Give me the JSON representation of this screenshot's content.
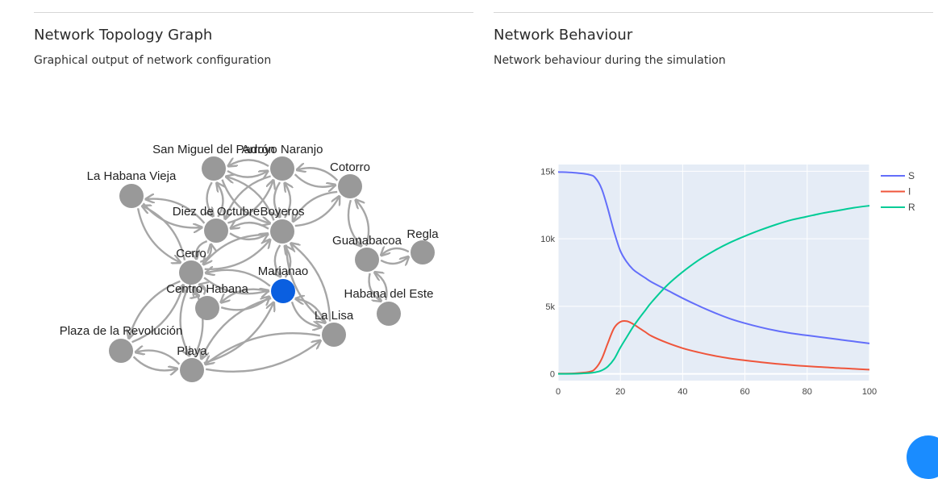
{
  "topology": {
    "title": "Network Topology Graph",
    "subtitle": "Graphical output of network configuration",
    "node_color": "#999999",
    "highlight_color": "#0a5fe0",
    "edge_color": "#a6a6a6",
    "nodes": [
      {
        "label": "San Miguel del Padrón",
        "highlight": false
      },
      {
        "label": "Arroyo Naranjo",
        "highlight": false
      },
      {
        "label": "Cotorro",
        "highlight": false
      },
      {
        "label": "La Habana Vieja",
        "highlight": false
      },
      {
        "label": "Diez de Octubre",
        "highlight": false
      },
      {
        "label": "Boyeros",
        "highlight": false
      },
      {
        "label": "Guanabacoa",
        "highlight": false
      },
      {
        "label": "Regla",
        "highlight": false
      },
      {
        "label": "Cerro",
        "highlight": false
      },
      {
        "label": "Marianao",
        "highlight": true
      },
      {
        "label": "Centro Habana",
        "highlight": false
      },
      {
        "label": "Habana del Este",
        "highlight": false
      },
      {
        "label": "La Lisa",
        "highlight": false
      },
      {
        "label": "Plaza de la Revolución",
        "highlight": false
      },
      {
        "label": "Playa",
        "highlight": false
      }
    ],
    "edges": [
      [
        "San Miguel del Padrón",
        "Arroyo Naranjo"
      ],
      [
        "San Miguel del Padrón",
        "Diez de Octubre"
      ],
      [
        "San Miguel del Padrón",
        "Boyeros"
      ],
      [
        "Arroyo Naranjo",
        "Cotorro"
      ],
      [
        "Arroyo Naranjo",
        "Diez de Octubre"
      ],
      [
        "Arroyo Naranjo",
        "Boyeros"
      ],
      [
        "La Habana Vieja",
        "Diez de Octubre"
      ],
      [
        "La Habana Vieja",
        "Cerro"
      ],
      [
        "Diez de Octubre",
        "Boyeros"
      ],
      [
        "Diez de Octubre",
        "Cerro"
      ],
      [
        "Boyeros",
        "Cotorro"
      ],
      [
        "Boyeros",
        "Cerro"
      ],
      [
        "Boyeros",
        "Marianao"
      ],
      [
        "Boyeros",
        "La Lisa"
      ],
      [
        "Cotorro",
        "Guanabacoa"
      ],
      [
        "Guanabacoa",
        "Regla"
      ],
      [
        "Guanabacoa",
        "Habana del Este"
      ],
      [
        "Cerro",
        "Marianao"
      ],
      [
        "Cerro",
        "Centro Habana"
      ],
      [
        "Cerro",
        "Plaza de la Revolución"
      ],
      [
        "Cerro",
        "Playa"
      ],
      [
        "Marianao",
        "La Lisa"
      ],
      [
        "Marianao",
        "Playa"
      ],
      [
        "Centro Habana",
        "Marianao"
      ],
      [
        "La Lisa",
        "Playa"
      ],
      [
        "Plaza de la Revolución",
        "Playa"
      ]
    ]
  },
  "behaviour": {
    "title": "Network Behaviour",
    "subtitle": "Network behaviour during the simulation"
  },
  "chart_data": {
    "type": "line",
    "title": "",
    "xlabel": "",
    "ylabel": "",
    "xlim": [
      0,
      100
    ],
    "ylim": [
      -500,
      15500
    ],
    "x_ticks": [
      0,
      20,
      40,
      60,
      80,
      100
    ],
    "y_ticks": [
      0,
      5000,
      10000,
      15000
    ],
    "y_tick_labels": [
      "0",
      "5k",
      "10k",
      "15k"
    ],
    "grid": true,
    "legend": "top-right",
    "plot_bg": "#e5ecf6",
    "x": [
      0,
      5,
      10,
      12,
      14,
      16,
      18,
      20,
      22,
      24,
      26,
      28,
      30,
      35,
      40,
      45,
      50,
      55,
      60,
      65,
      70,
      75,
      80,
      85,
      90,
      95,
      100
    ],
    "series": [
      {
        "name": "S",
        "color": "#636efa",
        "values": [
          14950,
          14900,
          14750,
          14500,
          13700,
          12200,
          10500,
          9100,
          8300,
          7750,
          7400,
          7100,
          6800,
          6200,
          5600,
          5050,
          4550,
          4100,
          3750,
          3450,
          3200,
          3000,
          2850,
          2700,
          2550,
          2400,
          2250
        ]
      },
      {
        "name": "I",
        "color": "#ef553b",
        "values": [
          20,
          40,
          150,
          400,
          1100,
          2300,
          3400,
          3850,
          3900,
          3700,
          3400,
          3100,
          2800,
          2300,
          1900,
          1600,
          1350,
          1150,
          1000,
          870,
          750,
          650,
          570,
          500,
          430,
          370,
          310
        ]
      },
      {
        "name": "R",
        "color": "#00cc96",
        "values": [
          0,
          10,
          60,
          120,
          250,
          550,
          1100,
          1950,
          2700,
          3450,
          4100,
          4700,
          5300,
          6550,
          7550,
          8400,
          9100,
          9700,
          10200,
          10650,
          11050,
          11400,
          11650,
          11900,
          12100,
          12300,
          12450
        ]
      }
    ]
  }
}
